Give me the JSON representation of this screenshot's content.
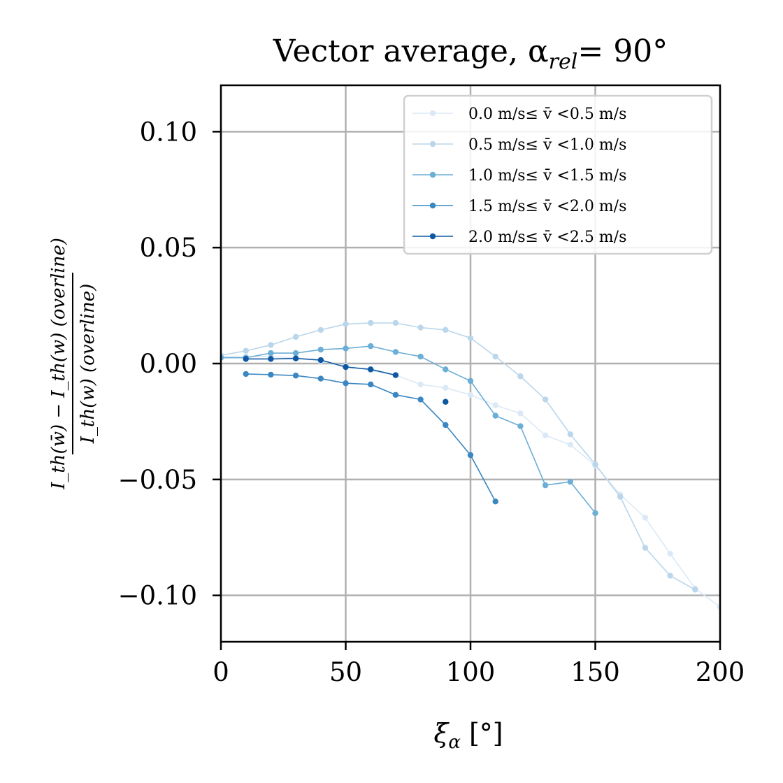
{
  "chart_data": {
    "type": "line",
    "title": "Vector average, α",
    "title_sub": "rel",
    "title_tail": "= 90°",
    "xlabel": "ξ",
    "xlabel_sub": "α",
    "xlabel_unit": " [°]",
    "ylabel_numerator": "I_th(w̄) − I_th(w) (overline)",
    "ylabel_denominator": "I_th(w) (overline)",
    "xlim": [
      0,
      200
    ],
    "ylim": [
      -0.12,
      0.12
    ],
    "xticks": [
      0,
      50,
      100,
      150,
      200
    ],
    "xtick_labels": [
      "0",
      "50",
      "100",
      "150",
      "200"
    ],
    "yticks": [
      0.1,
      0.05,
      0.0,
      -0.05,
      -0.1
    ],
    "ytick_labels": [
      "0.10",
      "0.05",
      "0.00",
      "−0.05",
      "−0.10"
    ],
    "grid": true,
    "legend_position": "top-right",
    "series": [
      {
        "name": "0.0 m/s≤ v̄ <0.5 m/s",
        "color": "#dbe9f6",
        "x": [
          0,
          10,
          20,
          30,
          40,
          50,
          60,
          70,
          80,
          90,
          100,
          110,
          120,
          130,
          140,
          150,
          160,
          170,
          180,
          190,
          200
        ],
        "y": [
          0.003,
          0.003,
          0.003,
          0.0025,
          0.001,
          -0.001,
          -0.003,
          -0.005,
          -0.009,
          -0.0105,
          -0.0135,
          -0.018,
          -0.0215,
          -0.031,
          -0.035,
          -0.044,
          -0.0565,
          -0.0665,
          -0.082,
          -0.097,
          -0.105
        ]
      },
      {
        "name": "0.5 m/s≤ v̄ <1.0 m/s",
        "color": "#bad6eb",
        "x": [
          0,
          10,
          20,
          30,
          40,
          50,
          60,
          70,
          80,
          90,
          100,
          110,
          120,
          130,
          140,
          150,
          160,
          170,
          180,
          190
        ],
        "y": [
          0.0035,
          0.0055,
          0.008,
          0.0115,
          0.0145,
          0.017,
          0.0175,
          0.0175,
          0.0155,
          0.0145,
          0.011,
          0.003,
          -0.0055,
          -0.0155,
          -0.0305,
          -0.0435,
          -0.0575,
          -0.0795,
          -0.0915,
          -0.0975
        ]
      },
      {
        "name": "1.0 m/s≤ v̄ <1.5 m/s",
        "color": "#6baed6",
        "x": [
          0,
          10,
          20,
          30,
          40,
          50,
          60,
          70,
          80,
          90,
          100,
          110,
          120,
          130,
          140,
          150
        ],
        "y": [
          0.0025,
          0.0025,
          0.0045,
          0.0045,
          0.006,
          0.0065,
          0.0075,
          0.005,
          0.003,
          -0.0025,
          -0.0075,
          -0.0225,
          -0.027,
          -0.0525,
          -0.051,
          -0.0645
        ]
      },
      {
        "name": "1.5 m/s≤ v̄ <2.0 m/s",
        "color": "#3a87c2",
        "x": [
          10,
          20,
          30,
          40,
          50,
          60,
          70,
          80,
          90,
          100,
          110
        ],
        "y": [
          -0.0045,
          -0.0048,
          -0.0052,
          -0.0065,
          -0.0085,
          -0.009,
          -0.0135,
          -0.0155,
          -0.0265,
          -0.0395,
          -0.0595
        ]
      },
      {
        "name": "2.0 m/s≤ v̄ <2.5 m/s",
        "color": "#0d58a1",
        "x": [
          10,
          20,
          30,
          40,
          50,
          60,
          70
        ],
        "y": [
          0.002,
          0.002,
          0.0022,
          0.0015,
          -0.0015,
          -0.0025,
          -0.005
        ],
        "extra_points": {
          "x": [
            90
          ],
          "y": [
            -0.0165
          ]
        }
      }
    ]
  }
}
